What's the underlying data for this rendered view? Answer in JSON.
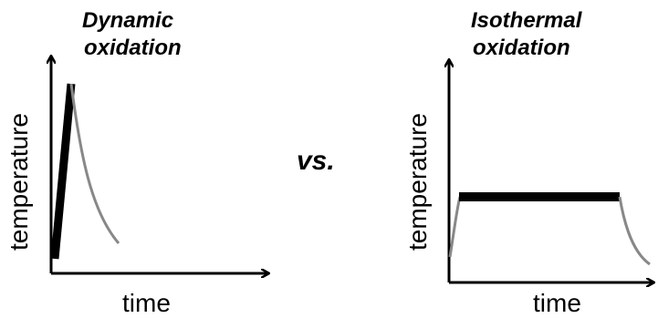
{
  "left_panel": {
    "title_line1": "Dynamic",
    "title_line2": "oxidation",
    "ylabel": "temperature",
    "xlabel": "time"
  },
  "comparison": {
    "label": "vs."
  },
  "right_panel": {
    "title_line1": "Isothermal",
    "title_line2": "oxidation",
    "ylabel": "temperature",
    "xlabel": "time"
  },
  "colors": {
    "axis": "#000000",
    "heating_segment": "#000000",
    "cooling_segment": "#888888"
  }
}
